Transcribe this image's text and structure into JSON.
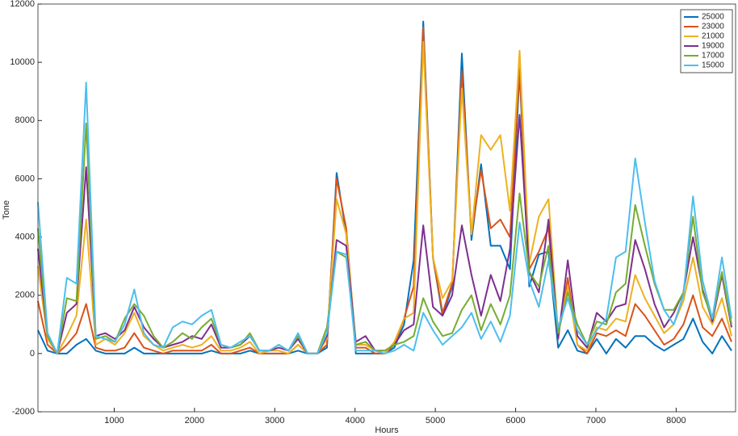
{
  "chart_data": {
    "type": "line",
    "xlabel": "Hours",
    "ylabel": "Tone",
    "x": [
      50,
      170,
      290,
      410,
      530,
      650,
      770,
      890,
      1010,
      1130,
      1250,
      1370,
      1490,
      1610,
      1730,
      1850,
      1970,
      2090,
      2210,
      2330,
      2450,
      2570,
      2690,
      2810,
      2930,
      3050,
      3170,
      3290,
      3410,
      3530,
      3650,
      3770,
      3890,
      4010,
      4130,
      4250,
      4370,
      4490,
      4610,
      4730,
      4850,
      4970,
      5090,
      5210,
      5330,
      5450,
      5570,
      5690,
      5810,
      5930,
      6050,
      6170,
      6290,
      6410,
      6530,
      6650,
      6770,
      6890,
      7010,
      7130,
      7250,
      7370,
      7490,
      7610,
      7730,
      7850,
      7970,
      8090,
      8210,
      8330,
      8450,
      8570,
      8690
    ],
    "series": [
      {
        "name": "25000",
        "color": "#0072bd",
        "values": [
          800,
          100,
          0,
          0,
          300,
          500,
          100,
          0,
          0,
          0,
          200,
          0,
          0,
          0,
          0,
          0,
          0,
          0,
          100,
          0,
          0,
          0,
          100,
          0,
          0,
          0,
          0,
          100,
          0,
          0,
          200,
          6200,
          4100,
          0,
          0,
          0,
          0,
          200,
          1000,
          3200,
          11400,
          3300,
          1300,
          2300,
          10300,
          3900,
          6500,
          3700,
          3700,
          2900,
          9700,
          2300,
          3400,
          3500,
          200,
          800,
          100,
          0,
          500,
          0,
          500,
          200,
          600,
          600,
          300,
          100,
          300,
          500,
          1200,
          400,
          0,
          600,
          100
        ]
      },
      {
        "name": "23000",
        "color": "#d95319",
        "values": [
          1800,
          300,
          0,
          300,
          700,
          1700,
          200,
          100,
          100,
          200,
          700,
          200,
          100,
          0,
          100,
          100,
          100,
          100,
          300,
          0,
          0,
          100,
          200,
          0,
          0,
          0,
          0,
          300,
          0,
          0,
          300,
          6000,
          4300,
          200,
          200,
          0,
          0,
          300,
          1200,
          2300,
          11200,
          3300,
          1400,
          2400,
          9700,
          4100,
          6300,
          4300,
          4600,
          4000,
          9800,
          2900,
          3500,
          4300,
          600,
          2600,
          300,
          0,
          700,
          600,
          800,
          600,
          1700,
          1300,
          800,
          300,
          500,
          1000,
          2000,
          900,
          600,
          1200,
          400
        ]
      },
      {
        "name": "21000",
        "color": "#edb120",
        "values": [
          3000,
          500,
          0,
          600,
          1300,
          4600,
          300,
          500,
          300,
          700,
          1400,
          600,
          300,
          100,
          200,
          300,
          200,
          300,
          600,
          100,
          100,
          200,
          400,
          0,
          100,
          100,
          0,
          300,
          0,
          0,
          500,
          5300,
          4100,
          300,
          300,
          100,
          0,
          400,
          1200,
          1400,
          10700,
          3300,
          1900,
          2500,
          9100,
          4100,
          7500,
          7000,
          7500,
          4900,
          10400,
          3100,
          4700,
          5300,
          700,
          2300,
          300,
          100,
          900,
          800,
          1200,
          1100,
          2700,
          1900,
          1300,
          700,
          1000,
          1800,
          3300,
          1600,
          1000,
          1900,
          600
        ]
      },
      {
        "name": "19000",
        "color": "#7e2f8e",
        "values": [
          3600,
          600,
          0,
          1400,
          1700,
          6400,
          600,
          700,
          500,
          800,
          1600,
          900,
          500,
          200,
          300,
          400,
          600,
          500,
          1000,
          200,
          200,
          300,
          600,
          100,
          100,
          200,
          100,
          500,
          0,
          0,
          600,
          3900,
          3700,
          400,
          600,
          100,
          100,
          300,
          800,
          1000,
          4400,
          1600,
          1300,
          2000,
          4400,
          2700,
          1300,
          2700,
          1800,
          3600,
          8200,
          2800,
          2100,
          4600,
          500,
          3200,
          600,
          200,
          1400,
          1100,
          1600,
          1700,
          3900,
          2900,
          1700,
          900,
          1400,
          2100,
          4000,
          2200,
          1100,
          2700,
          900
        ]
      },
      {
        "name": "17000",
        "color": "#77ac30",
        "values": [
          4300,
          600,
          0,
          1900,
          1800,
          7900,
          500,
          600,
          400,
          1200,
          1700,
          1300,
          600,
          200,
          400,
          700,
          500,
          900,
          1200,
          300,
          200,
          300,
          700,
          100,
          100,
          300,
          100,
          600,
          0,
          0,
          900,
          3500,
          3300,
          300,
          400,
          100,
          100,
          300,
          400,
          600,
          1900,
          1100,
          600,
          700,
          1500,
          2000,
          800,
          1700,
          1000,
          2000,
          5500,
          2800,
          2300,
          3700,
          700,
          2100,
          1000,
          300,
          1100,
          1000,
          2100,
          2400,
          5100,
          3700,
          2400,
          1500,
          1500,
          2100,
          4700,
          2100,
          1200,
          2800,
          1000
        ]
      },
      {
        "name": "15000",
        "color": "#4dbeee",
        "values": [
          5200,
          700,
          0,
          2600,
          2400,
          9300,
          600,
          500,
          400,
          1000,
          2200,
          700,
          300,
          200,
          900,
          1100,
          1000,
          1300,
          1500,
          300,
          200,
          400,
          600,
          100,
          100,
          300,
          100,
          700,
          0,
          0,
          700,
          3500,
          3400,
          100,
          100,
          100,
          0,
          100,
          300,
          100,
          1400,
          800,
          300,
          600,
          900,
          1400,
          500,
          1100,
          400,
          1300,
          4500,
          2500,
          1600,
          3200,
          900,
          1900,
          800,
          300,
          800,
          1200,
          3300,
          3500,
          6700,
          4500,
          2500,
          1500,
          1000,
          2000,
          5400,
          2500,
          1200,
          3300,
          1200
        ]
      }
    ],
    "xlim": [
      50,
      8740
    ],
    "ylim": [
      -2000,
      12000
    ],
    "xticks": [
      1000,
      2000,
      3000,
      4000,
      5000,
      6000,
      7000,
      8000
    ],
    "yticks": [
      -2000,
      0,
      2000,
      4000,
      6000,
      8000,
      10000,
      12000
    ],
    "legend": "top-right"
  }
}
